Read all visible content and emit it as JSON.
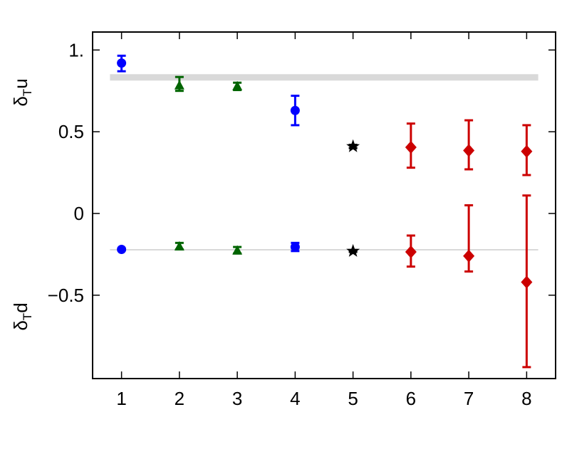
{
  "chart_data": {
    "type": "errorbar_scatter",
    "y_label_upper": {
      "symbol": "δ",
      "subscript": "T",
      "text": "u"
    },
    "y_label_lower": {
      "symbol": "δ",
      "subscript": "T",
      "text": "d"
    },
    "xlim": [
      0.5,
      8.5
    ],
    "xticks": [
      1,
      2,
      3,
      4,
      5,
      6,
      7,
      8
    ],
    "ylim": [
      -1.01,
      1.11
    ],
    "yticks": [
      {
        "value": 1,
        "label": "1."
      },
      0.5,
      0,
      {
        "value": -0.5,
        "label": "−0.5"
      }
    ],
    "bands": [
      {
        "x": [
          0.8,
          8.2
        ],
        "y": [
          0.813,
          0.852
        ],
        "color": "#d9d9d9"
      }
    ],
    "hlines": [
      {
        "x": [
          0.8,
          8.2
        ],
        "y": -0.222,
        "color": "#d9d9d9"
      }
    ],
    "series": [
      {
        "marker": "circle",
        "color": "#0000ff",
        "x": [
          1,
          4,
          1,
          4
        ],
        "values": [
          0.92,
          0.63,
          -0.22,
          -0.205
        ],
        "yerr_minus": [
          0.05,
          0.09,
          0.005,
          0.025
        ],
        "yerr_plus": [
          0.045,
          0.09,
          0.005,
          0.025
        ]
      },
      {
        "marker": "triangle",
        "color": "#006400",
        "x": [
          2,
          3,
          2,
          3
        ],
        "values": [
          0.785,
          0.78,
          -0.2,
          -0.225
        ],
        "yerr_minus": [
          0.035,
          0.025,
          0.02,
          0.02
        ],
        "yerr_plus": [
          0.05,
          0.02,
          0.02,
          0.02
        ]
      },
      {
        "marker": "star",
        "color": "#000000",
        "x": [
          5,
          5
        ],
        "values": [
          0.41,
          -0.23
        ],
        "yerr_minus": [
          0.01,
          0.005
        ],
        "yerr_plus": [
          0.01,
          0.005
        ]
      },
      {
        "marker": "diamond",
        "color": "#cc0000",
        "x": [
          6,
          7,
          8,
          6,
          7,
          8
        ],
        "values": [
          0.405,
          0.385,
          0.38,
          -0.235,
          -0.26,
          -0.42
        ],
        "yerr_minus": [
          0.125,
          0.115,
          0.145,
          0.09,
          0.095,
          0.52
        ],
        "yerr_plus": [
          0.145,
          0.185,
          0.16,
          0.1,
          0.31,
          0.53
        ]
      }
    ]
  }
}
